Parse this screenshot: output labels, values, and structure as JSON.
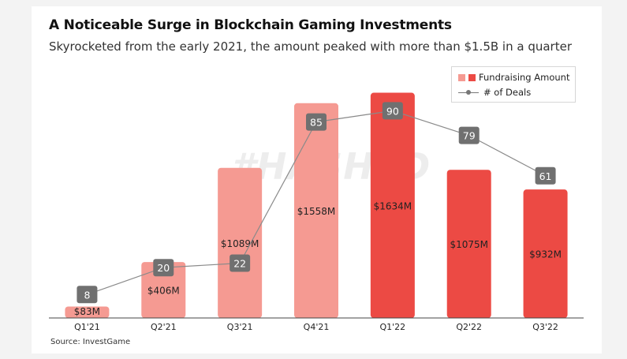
{
  "header": {
    "title": "A Noticeable Surge in Blockchain Gaming Investments",
    "subtitle": "Skyrocketed from the early 2021, the amount peaked with more than $1.5B in a quarter"
  },
  "watermark": "#HASHED",
  "source": "Source: InvestGame",
  "legend": {
    "fundraising_label": "Fundraising Amount",
    "deals_label": "# of Deals"
  },
  "colors": {
    "bar_2021": "#f59a92",
    "bar_2022": "#ec4a44",
    "deals_line": "#8a8a8a",
    "deal_label_bg": "#707070"
  },
  "chart_data": {
    "type": "bar",
    "title": "A Noticeable Surge in Blockchain Gaming Investments",
    "categories": [
      "Q1'21",
      "Q2'21",
      "Q3'21",
      "Q4'21",
      "Q1'22",
      "Q2'22",
      "Q3'22"
    ],
    "series": [
      {
        "name": "Fundraising Amount",
        "values": [
          83,
          406,
          1089,
          1558,
          1634,
          1075,
          932
        ],
        "labels": [
          "$83M",
          "$406M",
          "$1089M",
          "$1558M",
          "$1634M",
          "$1075M",
          "$932M"
        ],
        "unit": "$M"
      },
      {
        "name": "# of Deals",
        "type": "line",
        "values": [
          8,
          20,
          22,
          85,
          90,
          79,
          61
        ],
        "labels": [
          "8",
          "20",
          "22",
          "85",
          "90",
          "79",
          "61"
        ]
      }
    ],
    "xlabel": "",
    "ylabel": "",
    "ylim": [
      0,
      1700
    ],
    "deals_ylim": [
      0,
      100
    ],
    "grid": false,
    "legend_position": "top-right"
  }
}
